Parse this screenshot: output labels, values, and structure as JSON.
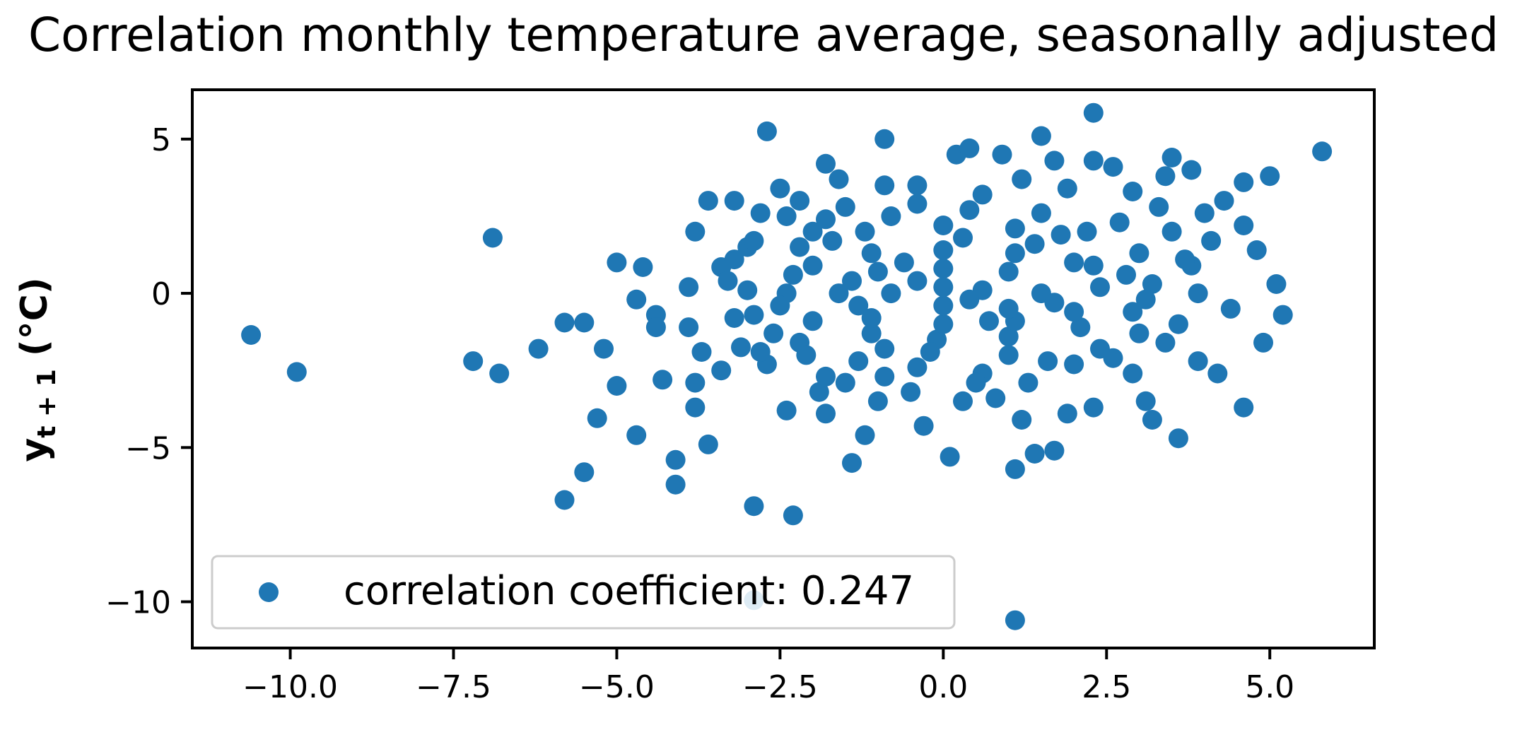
{
  "chart_data": {
    "type": "scatter",
    "title": "Correlation monthly temperature average, seasonally adjusted",
    "xlabel": "",
    "ylabel": "y",
    "ylabel_subscript": "t + 1",
    "ylabel_unit": " (°C)",
    "xlim": [
      -11.5,
      6.6
    ],
    "ylim": [
      -11.5,
      6.6
    ],
    "xticks": [
      -10.0,
      -7.5,
      -5.0,
      -2.5,
      0.0,
      2.5,
      5.0
    ],
    "xtick_labels": [
      "−10.0",
      "−7.5",
      "−5.0",
      "−2.5",
      "0.0",
      "2.5",
      "5.0"
    ],
    "yticks": [
      5,
      0,
      -5,
      -10
    ],
    "ytick_labels": [
      "5",
      "0",
      "−5",
      "−10"
    ],
    "grid": false,
    "legend_location": "lower left",
    "series": [
      {
        "name": "correlation coefficient: 0.247",
        "color": "#1f77b4",
        "points": [
          [
            -10.6,
            -1.35
          ],
          [
            -9.9,
            -2.55
          ],
          [
            -7.2,
            -2.2
          ],
          [
            -6.9,
            1.8
          ],
          [
            -6.8,
            -2.6
          ],
          [
            -6.2,
            -1.8
          ],
          [
            -5.8,
            -6.7
          ],
          [
            -5.8,
            -0.95
          ],
          [
            -5.5,
            -5.8
          ],
          [
            -5.5,
            -0.95
          ],
          [
            -5.3,
            -4.05
          ],
          [
            -5.2,
            -1.8
          ],
          [
            -5.0,
            1.0
          ],
          [
            -5.0,
            -3.0
          ],
          [
            -4.7,
            -0.2
          ],
          [
            -4.7,
            -4.6
          ],
          [
            -4.6,
            0.85
          ],
          [
            -4.3,
            -2.8
          ],
          [
            -4.1,
            -5.4
          ],
          [
            -4.1,
            -6.2
          ],
          [
            -3.8,
            -2.9
          ],
          [
            -3.8,
            -3.7
          ],
          [
            -3.8,
            2.0
          ],
          [
            -3.7,
            -1.9
          ],
          [
            -3.6,
            -4.9
          ],
          [
            -3.6,
            3.0
          ],
          [
            -3.4,
            0.85
          ],
          [
            -3.2,
            3.0
          ],
          [
            -3.1,
            -1.75
          ],
          [
            -3.0,
            1.5
          ],
          [
            -2.9,
            -6.9
          ],
          [
            -2.9,
            -9.95
          ],
          [
            -2.7,
            5.25
          ],
          [
            -2.5,
            3.4
          ],
          [
            -2.4,
            -3.8
          ],
          [
            -2.3,
            -7.2
          ],
          [
            -2.2,
            3.0
          ],
          [
            -2.0,
            2.0
          ],
          [
            -1.9,
            -3.2
          ],
          [
            -1.8,
            4.2
          ],
          [
            -1.8,
            -3.9
          ],
          [
            -1.6,
            3.7
          ],
          [
            -1.4,
            -5.5
          ],
          [
            -1.2,
            -4.6
          ],
          [
            -0.9,
            5.0
          ],
          [
            -0.9,
            3.5
          ],
          [
            -0.4,
            3.5
          ],
          [
            -0.3,
            -4.3
          ],
          [
            0.1,
            -5.3
          ],
          [
            0.2,
            4.5
          ],
          [
            0.4,
            4.7
          ],
          [
            0.9,
            4.5
          ],
          [
            1.1,
            -5.7
          ],
          [
            1.1,
            -10.6
          ],
          [
            1.4,
            -5.2
          ],
          [
            1.5,
            5.1
          ],
          [
            1.7,
            -5.1
          ],
          [
            1.7,
            4.3
          ],
          [
            2.3,
            5.85
          ],
          [
            2.3,
            4.3
          ],
          [
            2.6,
            4.1
          ],
          [
            3.4,
            3.8
          ],
          [
            3.5,
            4.4
          ],
          [
            3.6,
            -4.7
          ],
          [
            3.8,
            4.0
          ],
          [
            4.3,
            3.0
          ],
          [
            4.6,
            3.6
          ],
          [
            4.6,
            -3.7
          ],
          [
            4.9,
            -1.6
          ],
          [
            5.0,
            3.8
          ],
          [
            5.1,
            0.3
          ],
          [
            5.2,
            -0.7
          ],
          [
            5.8,
            4.6
          ],
          [
            4.8,
            1.4
          ],
          [
            4.6,
            2.2
          ],
          [
            4.4,
            -0.5
          ],
          [
            4.0,
            2.6
          ],
          [
            3.9,
            -2.2
          ],
          [
            4.2,
            -2.6
          ],
          [
            3.2,
            -4.1
          ],
          [
            3.1,
            -3.5
          ],
          [
            2.9,
            -2.6
          ],
          [
            2.3,
            -3.7
          ],
          [
            1.9,
            -3.9
          ],
          [
            1.2,
            -4.1
          ],
          [
            0.8,
            -3.4
          ],
          [
            0.3,
            -3.5
          ],
          [
            -0.5,
            -3.2
          ],
          [
            -1.0,
            -3.5
          ],
          [
            -1.8,
            -2.7
          ],
          [
            -2.7,
            -2.3
          ],
          [
            -3.4,
            -2.5
          ],
          [
            -3.9,
            -1.1
          ],
          [
            -4.4,
            -0.7
          ],
          [
            -4.4,
            -1.1
          ],
          [
            -3.9,
            0.2
          ],
          [
            -3.2,
            -0.8
          ],
          [
            -2.8,
            2.6
          ],
          [
            -2.4,
            2.5
          ],
          [
            -1.5,
            2.8
          ],
          [
            -0.4,
            2.9
          ],
          [
            0.6,
            3.2
          ],
          [
            1.2,
            3.7
          ],
          [
            1.9,
            3.4
          ],
          [
            2.9,
            3.3
          ],
          [
            3.3,
            2.8
          ],
          [
            4.1,
            1.7
          ],
          [
            3.8,
            0.9
          ],
          [
            3.9,
            0.0
          ],
          [
            3.6,
            -1.0
          ],
          [
            3.0,
            -1.3
          ],
          [
            2.4,
            -1.8
          ],
          [
            1.6,
            -2.2
          ],
          [
            0.6,
            -2.6
          ],
          [
            -0.4,
            -2.4
          ],
          [
            -1.3,
            -2.2
          ],
          [
            -2.2,
            -1.6
          ],
          [
            -2.9,
            -0.7
          ],
          [
            -3.3,
            0.4
          ],
          [
            -2.9,
            1.7
          ],
          [
            -2.2,
            1.5
          ],
          [
            -1.2,
            2.0
          ],
          [
            0.0,
            2.2
          ],
          [
            1.1,
            2.1
          ],
          [
            2.2,
            2.0
          ],
          [
            3.0,
            1.3
          ],
          [
            3.2,
            0.3
          ],
          [
            2.9,
            -0.6
          ],
          [
            2.1,
            -1.1
          ],
          [
            1.0,
            -1.4
          ],
          [
            -0.1,
            -1.5
          ],
          [
            -1.1,
            -1.3
          ],
          [
            -2.0,
            -0.9
          ],
          [
            -2.4,
            0.0
          ],
          [
            -2.0,
            0.9
          ],
          [
            -1.1,
            1.3
          ],
          [
            0.0,
            1.4
          ],
          [
            1.1,
            1.3
          ],
          [
            2.0,
            1.0
          ],
          [
            2.4,
            0.2
          ],
          [
            2.0,
            -0.6
          ],
          [
            1.1,
            -0.9
          ],
          [
            0.0,
            -1.0
          ],
          [
            -1.1,
            -0.8
          ],
          [
            -1.6,
            0.0
          ],
          [
            -1.0,
            0.7
          ],
          [
            0.0,
            0.8
          ],
          [
            1.0,
            0.7
          ],
          [
            1.5,
            0.0
          ],
          [
            1.0,
            -0.5
          ],
          [
            0.0,
            -0.4
          ],
          [
            -0.8,
            0.0
          ],
          [
            0.0,
            0.2
          ],
          [
            0.6,
            0.1
          ],
          [
            -0.4,
            0.4
          ],
          [
            0.4,
            -0.2
          ],
          [
            -1.5,
            -2.9
          ],
          [
            -0.9,
            -2.7
          ],
          [
            0.5,
            -2.9
          ],
          [
            1.3,
            -2.9
          ],
          [
            2.6,
            -2.1
          ],
          [
            3.4,
            -1.6
          ],
          [
            -2.6,
            -1.3
          ],
          [
            -3.0,
            0.1
          ],
          [
            -1.8,
            2.4
          ],
          [
            -0.8,
            2.5
          ],
          [
            0.4,
            2.7
          ],
          [
            1.5,
            2.6
          ],
          [
            2.7,
            2.3
          ],
          [
            3.5,
            2.0
          ],
          [
            -2.3,
            0.6
          ],
          [
            2.8,
            0.6
          ],
          [
            -1.3,
            -0.4
          ],
          [
            1.7,
            -0.3
          ],
          [
            -0.6,
            1.0
          ],
          [
            0.7,
            -0.9
          ],
          [
            -2.1,
            -2.0
          ],
          [
            2.0,
            -2.3
          ],
          [
            -1.7,
            1.7
          ],
          [
            1.8,
            1.9
          ],
          [
            -2.5,
            -0.4
          ],
          [
            3.1,
            -0.2
          ],
          [
            -0.2,
            -1.9
          ],
          [
            0.3,
            1.8
          ],
          [
            -0.9,
            -1.8
          ],
          [
            1.4,
            1.6
          ],
          [
            -1.4,
            0.4
          ],
          [
            2.3,
            0.9
          ],
          [
            -3.2,
            1.1
          ],
          [
            3.7,
            1.1
          ],
          [
            -2.8,
            -1.9
          ],
          [
            1.0,
            -2.0
          ]
        ]
      }
    ]
  }
}
